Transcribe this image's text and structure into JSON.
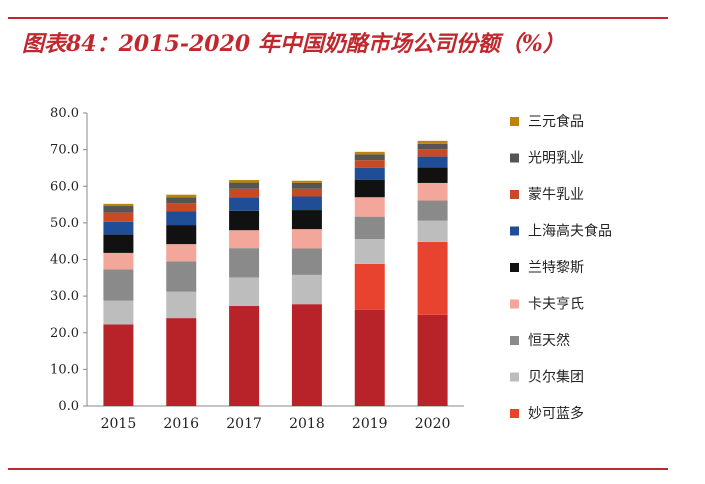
{
  "title": "图表84：2015-2020 年中国奶酪市场公司份额（%）",
  "colors": {
    "accent": "#c0282d",
    "series": [
      "#b8232a",
      "#e8432f",
      "#bdbdbd",
      "#8a8a8a",
      "#f3a79a",
      "#111111",
      "#1f4e96",
      "#c74a24",
      "#555555",
      "#b8860b"
    ]
  },
  "chart_data": {
    "type": "bar",
    "stacked": true,
    "title": "图表84：2015-2020 年中国奶酪市场公司份额（%）",
    "xlabel": "",
    "ylabel": "",
    "ylim": [
      0,
      80
    ],
    "yticks": [
      "0.0",
      "10.0",
      "20.0",
      "30.0",
      "40.0",
      "50.0",
      "60.0",
      "70.0",
      "80.0"
    ],
    "legend_position": "right",
    "categories": [
      "2015",
      "2016",
      "2017",
      "2018",
      "2019",
      "2020"
    ],
    "series": [
      {
        "name": "妙可蓝多",
        "values": [
          0,
          0,
          0,
          0,
          12.5,
          19.9
        ]
      },
      {
        "name": "贝尔集团",
        "values": [
          6.5,
          7.2,
          7.8,
          8.0,
          6.8,
          5.8
        ]
      },
      {
        "name": "恒天然",
        "values": [
          8.5,
          8.3,
          8.0,
          7.2,
          6.1,
          5.5
        ]
      },
      {
        "name": "卡夫亨氏",
        "values": [
          4.5,
          4.7,
          4.9,
          5.3,
          5.3,
          4.8
        ]
      },
      {
        "name": "兰特黎斯",
        "values": [
          5.0,
          5.2,
          5.3,
          5.2,
          4.8,
          4.2
        ]
      },
      {
        "name": "上海高夫食品",
        "values": [
          3.5,
          3.7,
          3.7,
          3.7,
          3.2,
          3.0
        ]
      },
      {
        "name": "蒙牛乳业",
        "values": [
          2.5,
          2.3,
          2.3,
          2.1,
          2.1,
          2.0
        ]
      },
      {
        "name": "光明乳业",
        "values": [
          1.8,
          1.6,
          1.7,
          1.6,
          1.6,
          1.5
        ]
      },
      {
        "name": "三元食品",
        "values": [
          0.6,
          0.7,
          0.7,
          0.6,
          0.7,
          0.8
        ]
      }
    ],
    "base_series": {
      "name": "",
      "values": [
        22.3,
        24.0,
        27.3,
        27.8,
        26.3,
        24.9
      ]
    }
  }
}
